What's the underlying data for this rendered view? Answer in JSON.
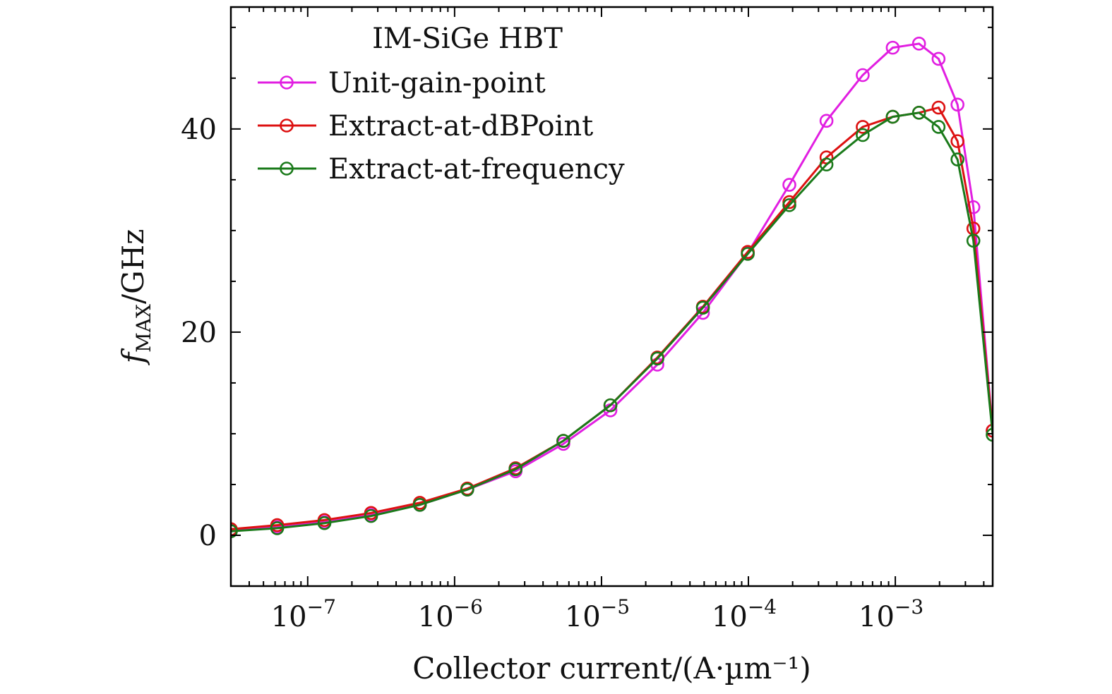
{
  "chart_data": {
    "type": "line",
    "title": "",
    "legend_title": "IM-SiGe HBT",
    "legend_position": "top-left",
    "xlabel": "Collector current/(A·µm⁻¹)",
    "ylabel_main": "f",
    "ylabel_sub": "MAX",
    "ylabel_rest": "/GHz",
    "x_scale": "log",
    "xlim": [
      3e-08,
      0.0046
    ],
    "ylim": [
      -5,
      52
    ],
    "x_ticks": [
      {
        "value": 1e-07,
        "label_base": "10",
        "label_exp": "−7"
      },
      {
        "value": 1e-06,
        "label_base": "10",
        "label_exp": "−6"
      },
      {
        "value": 1e-05,
        "label_base": "10",
        "label_exp": "−5"
      },
      {
        "value": 0.0001,
        "label_base": "10",
        "label_exp": "−4"
      },
      {
        "value": 0.001,
        "label_base": "10",
        "label_exp": "−3"
      }
    ],
    "y_ticks": [
      {
        "value": 0,
        "label": "0"
      },
      {
        "value": 20,
        "label": "20"
      },
      {
        "value": 40,
        "label": "40"
      }
    ],
    "x": [
      3e-08,
      6.2e-08,
      1.3e-07,
      2.7e-07,
      5.8e-07,
      1.22e-06,
      2.6e-06,
      5.5e-06,
      1.15e-05,
      2.4e-05,
      4.9e-05,
      9.9e-05,
      0.00019,
      0.00034,
      0.0006,
      0.00096,
      0.00145,
      0.00197,
      0.00265,
      0.0034,
      0.0046
    ],
    "series": [
      {
        "name": "Unit-gain-point",
        "color": "#e11ee1",
        "values": [
          0.5,
          0.8,
          1.3,
          2.0,
          3.0,
          4.5,
          6.3,
          9.0,
          12.3,
          16.8,
          21.9,
          27.8,
          34.5,
          40.8,
          45.3,
          48.0,
          48.4,
          46.9,
          42.4,
          32.3,
          10.3
        ]
      },
      {
        "name": "Extract-at-dBPoint",
        "color": "#dd1111",
        "values": [
          0.6,
          1.0,
          1.5,
          2.2,
          3.2,
          4.6,
          6.6,
          9.3,
          12.8,
          17.5,
          22.5,
          27.9,
          32.8,
          37.2,
          40.2,
          41.2,
          41.6,
          42.1,
          38.8,
          30.2,
          10.3
        ]
      },
      {
        "name": "Extract-at-frequency",
        "color": "#1a7a1a",
        "values": [
          0.4,
          0.7,
          1.2,
          1.9,
          3.0,
          4.5,
          6.5,
          9.3,
          12.8,
          17.4,
          22.4,
          27.7,
          32.5,
          36.5,
          39.4,
          41.2,
          41.6,
          40.2,
          37.0,
          29.0,
          9.9
        ]
      }
    ]
  }
}
